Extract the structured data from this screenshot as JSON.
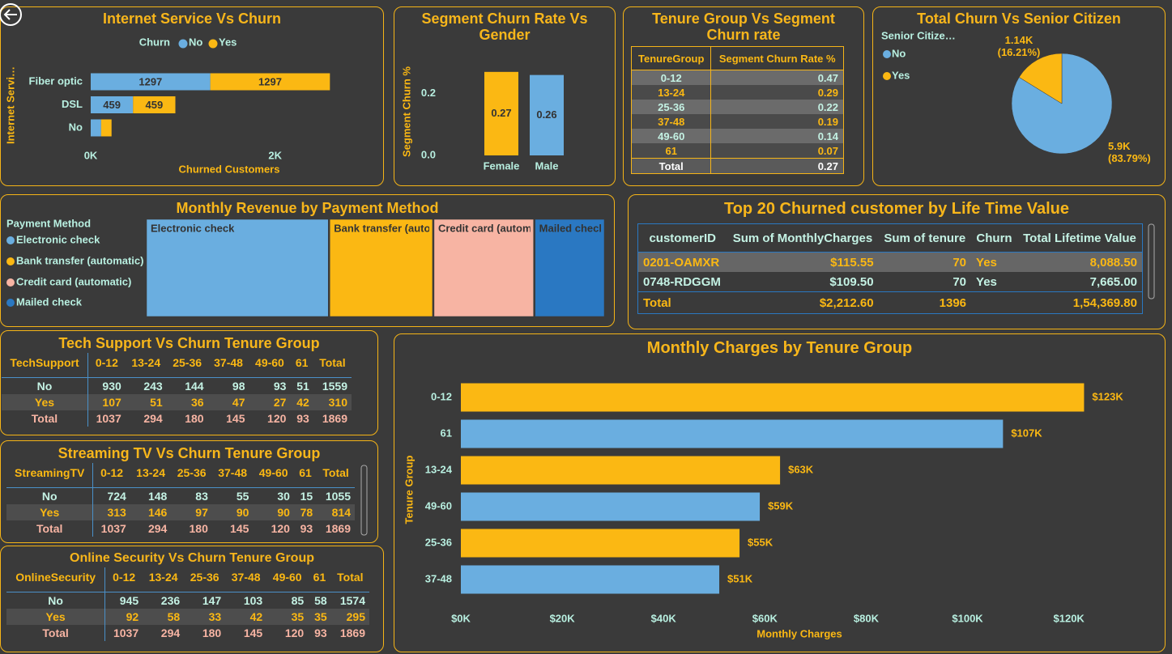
{
  "chart_data": [
    {
      "type": "hbar",
      "title": "Internet Service Vs Churn",
      "legend_title": "Churn",
      "x_label": "Churned Customers",
      "y_label": "Internet Servi…",
      "categories": [
        "Fiber optic",
        "DSL",
        "No"
      ],
      "series": [
        {
          "name": "No",
          "color": "#6aaee0",
          "values": [
            1297,
            459,
            113
          ]
        },
        {
          "name": "Yes",
          "color": "#fbb813",
          "values": [
            1297,
            459,
            113
          ]
        }
      ],
      "xlim": [
        0,
        2600
      ],
      "xticks": [
        {
          "value": 0,
          "label": "0K"
        },
        {
          "value": 2000,
          "label": "2K"
        }
      ]
    },
    {
      "type": "bar",
      "title": "Segment Churn Rate Vs Gender",
      "y_label": "Segment Churn %",
      "categories": [
        "Female",
        "Male"
      ],
      "values": [
        0.27,
        0.26
      ],
      "colors": [
        "#fbb813",
        "#6aaee0"
      ],
      "ylim": [
        0,
        0.28
      ],
      "yticks": [
        {
          "value": 0,
          "label": "0.0"
        },
        0.2
      ]
    },
    {
      "type": "pie",
      "title": "Total Churn Vs Senior Citizen",
      "legend_title": "Senior Citize…",
      "categories": [
        "No",
        "Yes"
      ],
      "values": [
        5893,
        1140
      ],
      "value_labels": [
        "5.9K (83.79%)",
        "1.14K (16.21%)"
      ],
      "colors": [
        "#6aaee0",
        "#fbb813"
      ]
    },
    {
      "type": "treemap",
      "title": "Monthly Revenue by Payment Method",
      "legend_title": "Payment Method",
      "categories": [
        "Electronic check",
        "Bank transfer (automatic)",
        "Credit card (automatic)",
        "Mailed check"
      ],
      "values": [
        39.9,
        22.7,
        22.0,
        15.4
      ],
      "colors": [
        "#6aaee0",
        "#fbb813",
        "#f7b4a3",
        "#2a78c2"
      ]
    },
    {
      "type": "hbar",
      "title": "Monthly Charges by Tenure Group",
      "x_label": "Monthly Charges",
      "y_label": "Tenure Group",
      "categories": [
        "0-12",
        "61",
        "13-24",
        "49-60",
        "25-36",
        "37-48"
      ],
      "values": [
        123000,
        107000,
        63000,
        59000,
        55000,
        51000
      ],
      "value_labels": [
        "$123K",
        "$107K",
        "$63K",
        "$59K",
        "$55K",
        "$51K"
      ],
      "colors": [
        "#fbb813",
        "#6aaee0",
        "#fbb813",
        "#6aaee0",
        "#fbb813",
        "#6aaee0"
      ],
      "xlim": [
        0,
        137000
      ],
      "xticks": [
        {
          "value": 0,
          "label": "$0K"
        },
        {
          "value": 20000,
          "label": "$20K"
        },
        {
          "value": 40000,
          "label": "$40K"
        },
        {
          "value": 60000,
          "label": "$60K"
        },
        {
          "value": 80000,
          "label": "$80K"
        },
        {
          "value": 100000,
          "label": "$100K"
        },
        {
          "value": 120000,
          "label": "$120K"
        }
      ]
    }
  ],
  "tables": {
    "tenure_churn": {
      "title": "Tenure Group Vs Segment Churn rate",
      "columns": [
        "TenureGroup",
        "Segment Churn Rate %"
      ],
      "rows": [
        [
          "0-12",
          "0.47"
        ],
        [
          "13-24",
          "0.29"
        ],
        [
          "25-36",
          "0.22"
        ],
        [
          "37-48",
          "0.19"
        ],
        [
          "49-60",
          "0.14"
        ],
        [
          "61",
          "0.07"
        ],
        [
          "Total",
          "0.27"
        ]
      ]
    },
    "top20": {
      "title": "Top 20 Churned customer by Life Time Value",
      "columns": [
        "customerID",
        "Sum of MonthlyCharges",
        "Sum of tenure",
        "Churn",
        "Total Lifetime Value"
      ],
      "rows": [
        [
          "0201-OAMXR",
          "$115.55",
          "70",
          "Yes",
          "8,088.50"
        ],
        [
          "0748-RDGGM",
          "$109.50",
          "70",
          "Yes",
          "7,665.00"
        ],
        [
          "Total",
          "$2,212.60",
          "1396",
          null,
          "1,54,369.80"
        ]
      ]
    },
    "tech_support": {
      "title": "Tech Support Vs Churn Tenure Group",
      "columns": [
        "TechSupport",
        "0-12",
        "13-24",
        "25-36",
        "37-48",
        "49-60",
        "61",
        "Total"
      ],
      "rows": [
        [
          "No",
          "930",
          "243",
          "144",
          "98",
          "93",
          "51",
          "1559"
        ],
        [
          "Yes",
          "107",
          "51",
          "36",
          "47",
          "27",
          "42",
          "310"
        ],
        [
          "Total",
          "1037",
          "294",
          "180",
          "145",
          "120",
          "93",
          "1869"
        ]
      ]
    },
    "streaming_tv": {
      "title": "Streaming TV Vs Churn Tenure Group",
      "columns": [
        "StreamingTV",
        "0-12",
        "13-24",
        "25-36",
        "37-48",
        "49-60",
        "61",
        "Total"
      ],
      "rows": [
        [
          "No",
          "724",
          "148",
          "83",
          "55",
          "30",
          "15",
          "1055"
        ],
        [
          "Yes",
          "313",
          "146",
          "97",
          "90",
          "90",
          "78",
          "814"
        ],
        [
          "Total",
          "1037",
          "294",
          "180",
          "145",
          "120",
          "93",
          "1869"
        ]
      ]
    },
    "online_security": {
      "title": "Online Security Vs Churn Tenure Group",
      "columns": [
        "OnlineSecurity",
        "0-12",
        "13-24",
        "25-36",
        "37-48",
        "49-60",
        "61",
        "Total"
      ],
      "rows": [
        [
          "No",
          "945",
          "236",
          "147",
          "103",
          "85",
          "58",
          "1574"
        ],
        [
          "Yes",
          "92",
          "58",
          "33",
          "42",
          "35",
          "35",
          "295"
        ],
        [
          "Total",
          "1037",
          "294",
          "180",
          "145",
          "120",
          "93",
          "1869"
        ]
      ]
    }
  }
}
